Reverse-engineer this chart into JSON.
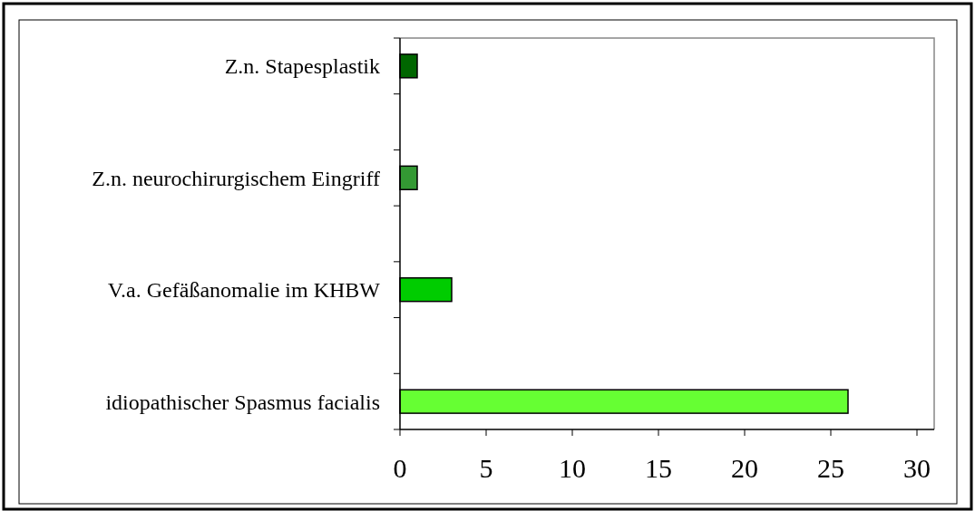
{
  "chart_data": {
    "type": "bar",
    "orientation": "horizontal",
    "categories": [
      "Z.n. Stapesplastik",
      null,
      "Z.n. neurochirurgischem Eingriff",
      null,
      "V.a. Gefäßanomalie im KHBW",
      null,
      "idiopathischer Spasmus facialis"
    ],
    "values": [
      1,
      null,
      1,
      null,
      3,
      null,
      26
    ],
    "colors": [
      "#006600",
      null,
      "#339933",
      null,
      "#00cc00",
      null,
      "#66ff33"
    ],
    "xlim": [
      0,
      31
    ],
    "xticks": [
      0,
      5,
      10,
      15,
      20,
      25,
      30
    ],
    "grid": false
  }
}
